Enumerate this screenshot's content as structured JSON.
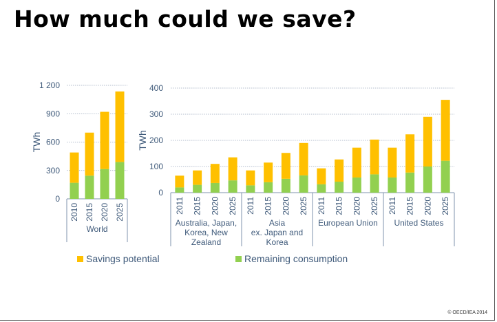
{
  "title": "How much could we save?",
  "copyright": "© OECD/IEA 2014",
  "colors": {
    "savings": "#ffc000",
    "remaining": "#92d050",
    "axis": "#3f5a7a"
  },
  "legend": [
    {
      "label": "Savings potential",
      "color": "#ffc000"
    },
    {
      "label": "Remaining consumption",
      "color": "#92d050"
    }
  ],
  "chart_data": [
    {
      "type": "bar",
      "stacked": true,
      "ylabel": "TWh",
      "ylim": [
        0,
        1200
      ],
      "yticks": [
        "0",
        "300",
        "600",
        "900",
        "1 200"
      ],
      "grid": true,
      "groups": [
        {
          "label": "World",
          "categories": [
            "2010",
            "2015",
            "2020",
            "2025"
          ],
          "series": [
            {
              "name": "Remaining consumption",
              "values": [
                170,
                245,
                315,
                390
              ]
            },
            {
              "name": "Savings potential",
              "values": [
                320,
                455,
                605,
                745
              ]
            }
          ]
        }
      ]
    },
    {
      "type": "bar",
      "stacked": true,
      "ylabel": "TWh",
      "ylim": [
        0,
        400
      ],
      "yticks": [
        "0",
        "100",
        "200",
        "300",
        "400"
      ],
      "grid": true,
      "groups": [
        {
          "label": "Australia, Japan, Korea, New Zealand",
          "label_lines": [
            "Australia, Japan,",
            "Korea, New",
            "Zealand"
          ],
          "categories": [
            "2011",
            "2015",
            "2020",
            "2025"
          ],
          "series": [
            {
              "name": "Remaining consumption",
              "values": [
                20,
                30,
                37,
                47
              ]
            },
            {
              "name": "Savings potential",
              "values": [
                45,
                55,
                73,
                88
              ]
            }
          ]
        },
        {
          "label": "Asia ex. Japan and Korea",
          "label_lines": [
            "Asia",
            "ex. Japan and",
            "Korea"
          ],
          "categories": [
            "2011",
            "2015",
            "2020",
            "2025"
          ],
          "series": [
            {
              "name": "Remaining consumption",
              "values": [
                28,
                40,
                53,
                66
              ]
            },
            {
              "name": "Savings potential",
              "values": [
                57,
                75,
                99,
                124
              ]
            }
          ]
        },
        {
          "label": "European Union",
          "label_lines": [
            "European Union"
          ],
          "categories": [
            "2011",
            "2015",
            "2020",
            "2025"
          ],
          "series": [
            {
              "name": "Remaining consumption",
              "values": [
                32,
                42,
                58,
                70
              ]
            },
            {
              "name": "Savings potential",
              "values": [
                61,
                85,
                114,
                133
              ]
            }
          ]
        },
        {
          "label": "United States",
          "label_lines": [
            "United States"
          ],
          "categories": [
            "2011",
            "2015",
            "2020",
            "2025"
          ],
          "series": [
            {
              "name": "Remaining consumption",
              "values": [
                58,
                77,
                100,
                122
              ]
            },
            {
              "name": "Savings potential",
              "values": [
                114,
                146,
                190,
                233
              ]
            }
          ]
        }
      ]
    }
  ]
}
